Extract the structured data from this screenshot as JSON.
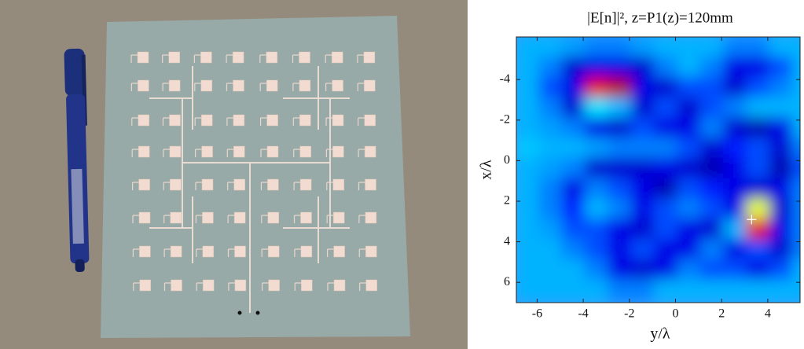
{
  "chart_data": {
    "type": "heatmap",
    "title": "|E[n]|², z=P1(z)=120mm",
    "x_label": "y/λ",
    "y_label": "x/λ",
    "xlim": [
      -6.9,
      5.4
    ],
    "ylim": [
      -6.1,
      7.0
    ],
    "invert_y": true,
    "xticks": [
      -6,
      -4,
      -2,
      0,
      2,
      4
    ],
    "yticks": [
      -4,
      -2,
      0,
      2,
      4,
      6
    ],
    "zlim": [
      0,
      1
    ],
    "colormap": "jet",
    "x": [
      -6.4,
      -5.4,
      -4.4,
      -3.4,
      -2.4,
      -1.4,
      -0.4,
      0.6,
      1.6,
      2.6,
      3.6,
      4.6,
      5.6
    ],
    "y": [
      -5.6,
      -4.6,
      -3.6,
      -2.6,
      -1.6,
      -0.6,
      0.4,
      1.4,
      2.4,
      3.4,
      4.4,
      5.4,
      6.4
    ],
    "z": [
      [
        0.3,
        0.3,
        0.28,
        0.25,
        0.25,
        0.28,
        0.3,
        0.3,
        0.3,
        0.25,
        0.25,
        0.3,
        0.3
      ],
      [
        0.3,
        0.25,
        0.08,
        0.1,
        0.1,
        0.08,
        0.25,
        0.3,
        0.25,
        0.1,
        0.1,
        0.2,
        0.3
      ],
      [
        0.3,
        0.2,
        0.1,
        0.9,
        0.95,
        0.1,
        0.08,
        0.2,
        0.2,
        0.08,
        0.2,
        0.25,
        0.3
      ],
      [
        0.3,
        0.25,
        0.08,
        0.35,
        0.3,
        0.08,
        0.2,
        0.08,
        0.2,
        0.25,
        0.3,
        0.3,
        0.3
      ],
      [
        0.3,
        0.28,
        0.25,
        0.1,
        0.08,
        0.2,
        0.1,
        0.1,
        0.25,
        0.08,
        0.05,
        0.1,
        0.3
      ],
      [
        0.32,
        0.3,
        0.3,
        0.28,
        0.25,
        0.25,
        0.25,
        0.2,
        0.08,
        0.15,
        0.2,
        0.08,
        0.25
      ],
      [
        0.3,
        0.28,
        0.25,
        0.08,
        0.08,
        0.08,
        0.1,
        0.08,
        0.05,
        0.1,
        0.2,
        0.05,
        0.2
      ],
      [
        0.3,
        0.25,
        0.1,
        0.25,
        0.2,
        0.1,
        0.05,
        0.2,
        0.15,
        0.1,
        0.08,
        0.1,
        0.25
      ],
      [
        0.3,
        0.25,
        0.15,
        0.3,
        0.25,
        0.1,
        0.2,
        0.25,
        0.2,
        0.1,
        0.6,
        0.08,
        0.25
      ],
      [
        0.3,
        0.28,
        0.2,
        0.2,
        0.1,
        0.08,
        0.2,
        0.1,
        0.08,
        0.3,
        0.9,
        0.1,
        0.25
      ],
      [
        0.3,
        0.3,
        0.25,
        0.2,
        0.1,
        0.2,
        0.1,
        0.1,
        0.25,
        0.1,
        0.2,
        0.08,
        0.25
      ],
      [
        0.3,
        0.3,
        0.3,
        0.25,
        0.1,
        0.08,
        0.1,
        0.25,
        0.2,
        0.2,
        0.1,
        0.2,
        0.3
      ],
      [
        0.3,
        0.3,
        0.3,
        0.3,
        0.25,
        0.25,
        0.3,
        0.3,
        0.3,
        0.3,
        0.3,
        0.3,
        0.3
      ]
    ],
    "marker": {
      "x": 3.3,
      "y": 2.9,
      "color": "#ffffff"
    }
  }
}
